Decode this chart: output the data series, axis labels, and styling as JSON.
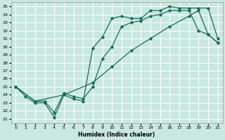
{
  "xlabel": "Humidex (Indice chaleur)",
  "bg_color": "#c8e8e0",
  "grid_color": "#ffffff",
  "line_color": "#1a6b5a",
  "xlim": [
    -0.5,
    21.5
  ],
  "ylim": [
    20.5,
    35.5
  ],
  "yticks": [
    21,
    22,
    23,
    24,
    25,
    26,
    27,
    28,
    29,
    30,
    31,
    32,
    33,
    34,
    35
  ],
  "xticks": [
    0,
    1,
    2,
    3,
    4,
    5,
    6,
    7,
    8,
    9,
    10,
    11,
    12,
    13,
    14,
    15,
    16,
    17,
    18,
    19,
    20,
    21
  ],
  "line1_x": [
    0,
    1,
    2,
    3,
    4,
    5,
    6,
    7,
    8,
    9,
    10,
    11,
    12,
    13,
    14,
    15,
    16,
    17,
    18,
    19,
    20,
    21
  ],
  "line1_y": [
    25,
    23.8,
    23.0,
    23.0,
    21.2,
    24.0,
    23.5,
    23.2,
    29.8,
    31.2,
    33.5,
    33.8,
    33.5,
    33.5,
    34.5,
    34.5,
    35.0,
    34.8,
    34.8,
    34.8,
    34.8,
    31.0
  ],
  "line2_x": [
    0,
    2,
    3,
    4,
    5,
    6,
    7,
    8,
    9,
    10,
    11,
    12,
    13,
    14,
    15,
    16,
    17,
    18,
    19,
    20,
    21
  ],
  "line2_y": [
    25,
    23.2,
    23.2,
    21.8,
    24.2,
    23.8,
    23.5,
    25.0,
    28.5,
    30.0,
    32.5,
    33.0,
    33.2,
    33.8,
    34.0,
    34.5,
    34.5,
    34.5,
    32.0,
    31.5,
    30.5
  ],
  "line3_x": [
    0,
    2,
    5,
    8,
    10,
    12,
    14,
    16,
    18,
    19,
    20,
    21
  ],
  "line3_y": [
    25,
    23.2,
    24.0,
    25.5,
    27.5,
    29.5,
    31.0,
    32.5,
    33.8,
    34.5,
    31.5,
    30.5
  ]
}
